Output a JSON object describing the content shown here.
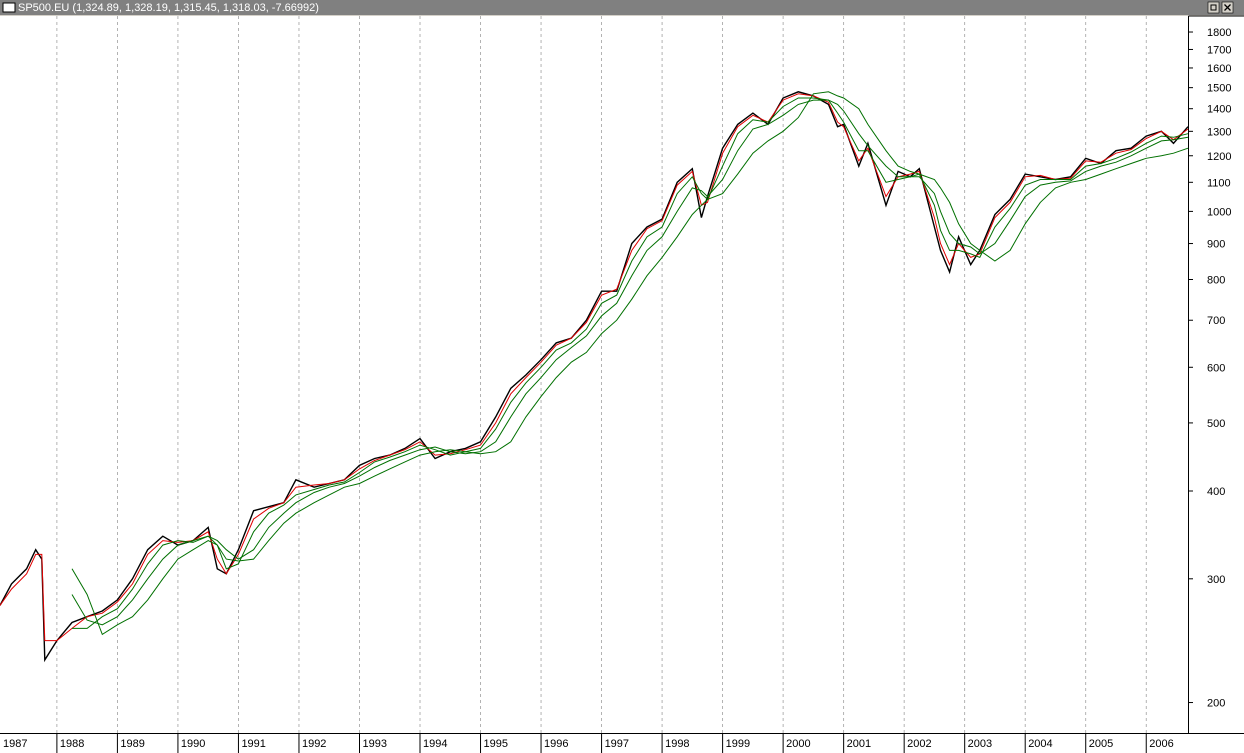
{
  "window_title": "SP500.EU (1,324.89, 1,328.19, 1,315.45, 1,318.03, -7.66992)",
  "chart_data": {
    "type": "line",
    "log_scale": true,
    "xgrid": true,
    "xlim": [
      1987.06,
      2006.69
    ],
    "xticks": [
      {
        "value": 1987,
        "label": "1987"
      },
      {
        "value": 1988,
        "label": "1988"
      },
      {
        "value": 1989,
        "label": "1989"
      },
      {
        "value": 1990,
        "label": "1990"
      },
      {
        "value": 1991,
        "label": "1991"
      },
      {
        "value": 1992,
        "label": "1992"
      },
      {
        "value": 1993,
        "label": "1993"
      },
      {
        "value": 1994,
        "label": "1994"
      },
      {
        "value": 1995,
        "label": "1995"
      },
      {
        "value": 1996,
        "label": "1996"
      },
      {
        "value": 1997,
        "label": "1997"
      },
      {
        "value": 1998,
        "label": "1998"
      },
      {
        "value": 1999,
        "label": "1999"
      },
      {
        "value": 2000,
        "label": "2000"
      },
      {
        "value": 2001,
        "label": "2001"
      },
      {
        "value": 2002,
        "label": "2002"
      },
      {
        "value": 2003,
        "label": "2003"
      },
      {
        "value": 2004,
        "label": "2004"
      },
      {
        "value": 2005,
        "label": "2005"
      },
      {
        "value": 2006,
        "label": "2006"
      }
    ],
    "ylim": [
      181,
      1897
    ],
    "yticks": [
      200,
      300,
      400,
      500,
      600,
      700,
      800,
      900,
      1000,
      1100,
      1200,
      1300,
      1400,
      1500,
      1600,
      1700,
      1800
    ],
    "x": [
      1987.06,
      1987.25,
      1987.5,
      1987.65,
      1987.75,
      1987.8,
      1988.0,
      1988.25,
      1988.5,
      1988.75,
      1989.0,
      1989.25,
      1989.5,
      1989.75,
      1990.0,
      1990.25,
      1990.5,
      1990.65,
      1990.8,
      1991.0,
      1991.25,
      1991.5,
      1991.75,
      1991.95,
      1992.25,
      1992.5,
      1992.75,
      1993.0,
      1993.25,
      1993.5,
      1993.75,
      1994.0,
      1994.25,
      1994.5,
      1994.75,
      1995.0,
      1995.25,
      1995.5,
      1995.75,
      1996.0,
      1996.25,
      1996.5,
      1996.75,
      1997.0,
      1997.25,
      1997.5,
      1997.75,
      1998.0,
      1998.25,
      1998.5,
      1998.65,
      1998.75,
      1999.0,
      1999.25,
      1999.5,
      1999.75,
      2000.0,
      2000.25,
      2000.5,
      2000.75,
      2000.9,
      2001.0,
      2001.25,
      2001.4,
      2001.7,
      2001.9,
      2002.1,
      2002.25,
      2002.5,
      2002.6,
      2002.75,
      2002.9,
      2003.1,
      2003.25,
      2003.5,
      2003.75,
      2004.0,
      2004.25,
      2004.5,
      2004.75,
      2005.0,
      2005.25,
      2005.5,
      2005.75,
      2006.0,
      2006.25,
      2006.45,
      2006.69
    ],
    "series": [
      {
        "color": "#000000",
        "values": [
          275,
          295,
          310,
          330,
          320,
          230,
          245,
          260,
          265,
          270,
          280,
          300,
          330,
          345,
          335,
          340,
          355,
          310,
          305,
          330,
          375,
          380,
          385,
          415,
          405,
          410,
          415,
          435,
          445,
          450,
          460,
          475,
          445,
          455,
          460,
          470,
          510,
          560,
          585,
          615,
          650,
          660,
          700,
          770,
          770,
          900,
          950,
          975,
          1100,
          1150,
          980,
          1050,
          1230,
          1330,
          1380,
          1330,
          1450,
          1480,
          1460,
          1420,
          1320,
          1330,
          1160,
          1250,
          1020,
          1140,
          1120,
          1150,
          950,
          880,
          820,
          920,
          840,
          880,
          990,
          1040,
          1130,
          1120,
          1110,
          1120,
          1190,
          1170,
          1220,
          1230,
          1280,
          1300,
          1250,
          1320
        ]
      },
      {
        "color": "#e00000",
        "values": [
          275,
          290,
          305,
          325,
          325,
          245,
          245,
          255,
          265,
          268,
          278,
          295,
          325,
          340,
          338,
          340,
          350,
          320,
          305,
          325,
          365,
          378,
          385,
          405,
          408,
          410,
          415,
          430,
          442,
          450,
          458,
          470,
          450,
          452,
          458,
          465,
          500,
          550,
          580,
          610,
          645,
          660,
          695,
          760,
          775,
          880,
          945,
          970,
          1090,
          1140,
          1020,
          1030,
          1210,
          1320,
          1370,
          1340,
          1440,
          1470,
          1460,
          1430,
          1340,
          1320,
          1180,
          1230,
          1050,
          1120,
          1130,
          1140,
          980,
          900,
          840,
          900,
          860,
          870,
          980,
          1030,
          1120,
          1125,
          1110,
          1115,
          1180,
          1175,
          1210,
          1225,
          1270,
          1300,
          1265,
          1310
        ]
      },
      {
        "color": "#007000",
        "values": [
          null,
          null,
          null,
          null,
          null,
          null,
          null,
          255,
          255,
          265,
          272,
          290,
          315,
          335,
          340,
          338,
          345,
          335,
          310,
          315,
          350,
          372,
          382,
          395,
          402,
          408,
          412,
          425,
          440,
          447,
          455,
          465,
          458,
          450,
          455,
          460,
          490,
          535,
          570,
          600,
          635,
          650,
          680,
          740,
          760,
          850,
          920,
          950,
          1060,
          1120,
          1060,
          1040,
          1160,
          1290,
          1350,
          1340,
          1410,
          1450,
          1450,
          1440,
          1380,
          1340,
          1220,
          1220,
          1100,
          1110,
          1120,
          1130,
          1020,
          940,
          880,
          880,
          870,
          860,
          950,
          1010,
          1090,
          1110,
          1110,
          1110,
          1160,
          1170,
          1190,
          1215,
          1250,
          1280,
          1275,
          1290
        ]
      },
      {
        "color": "#007000",
        "values": [
          null,
          null,
          null,
          null,
          null,
          null,
          null,
          285,
          262,
          258,
          265,
          280,
          300,
          320,
          335,
          340,
          345,
          340,
          330,
          320,
          330,
          355,
          372,
          385,
          398,
          405,
          410,
          420,
          432,
          442,
          450,
          458,
          462,
          455,
          452,
          455,
          470,
          510,
          550,
          580,
          615,
          640,
          665,
          710,
          740,
          810,
          880,
          920,
          1000,
          1080,
          1070,
          1050,
          1110,
          1220,
          1310,
          1330,
          1370,
          1420,
          1440,
          1440,
          1420,
          1390,
          1290,
          1240,
          1160,
          1120,
          1120,
          1120,
          1060,
          1000,
          930,
          900,
          890,
          870,
          900,
          970,
          1050,
          1090,
          1100,
          1105,
          1140,
          1160,
          1175,
          1200,
          1230,
          1260,
          1265,
          1275
        ]
      },
      {
        "color": "#007000",
        "values": [
          null,
          null,
          null,
          null,
          null,
          null,
          null,
          310,
          285,
          250,
          258,
          265,
          280,
          300,
          320,
          330,
          340,
          335,
          320,
          318,
          320,
          340,
          360,
          372,
          385,
          395,
          405,
          410,
          420,
          430,
          440,
          450,
          455,
          458,
          455,
          452,
          455,
          470,
          510,
          545,
          580,
          610,
          630,
          670,
          700,
          750,
          810,
          860,
          920,
          990,
          1020,
          1040,
          1060,
          1130,
          1210,
          1260,
          1300,
          1360,
          1470,
          1480,
          1460,
          1450,
          1400,
          1330,
          1220,
          1160,
          1140,
          1130,
          1110,
          1080,
          1030,
          960,
          900,
          880,
          850,
          880,
          960,
          1030,
          1080,
          1100,
          1110,
          1130,
          1150,
          1170,
          1190,
          1200,
          1210,
          1230
        ]
      }
    ]
  }
}
